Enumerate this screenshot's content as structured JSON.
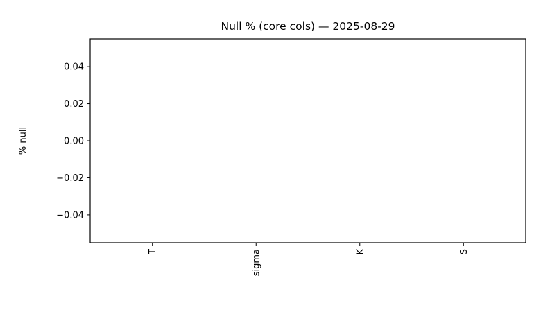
{
  "chart_data": {
    "type": "bar",
    "title": "Null % (core cols) — 2025-08-29",
    "xlabel": "",
    "ylabel": "% null",
    "categories": [
      "T",
      "sigma",
      "K",
      "S"
    ],
    "values": [
      0,
      0,
      0,
      0
    ],
    "ylim": [
      -0.055,
      0.055
    ],
    "yticks": [
      -0.04,
      -0.02,
      0.0,
      0.02,
      0.04
    ],
    "ytick_labels": [
      "−0.04",
      "−0.02",
      "0.00",
      "0.02",
      "0.04"
    ],
    "x_tick_rotation": "vertical",
    "grid": false,
    "legend": "none"
  }
}
